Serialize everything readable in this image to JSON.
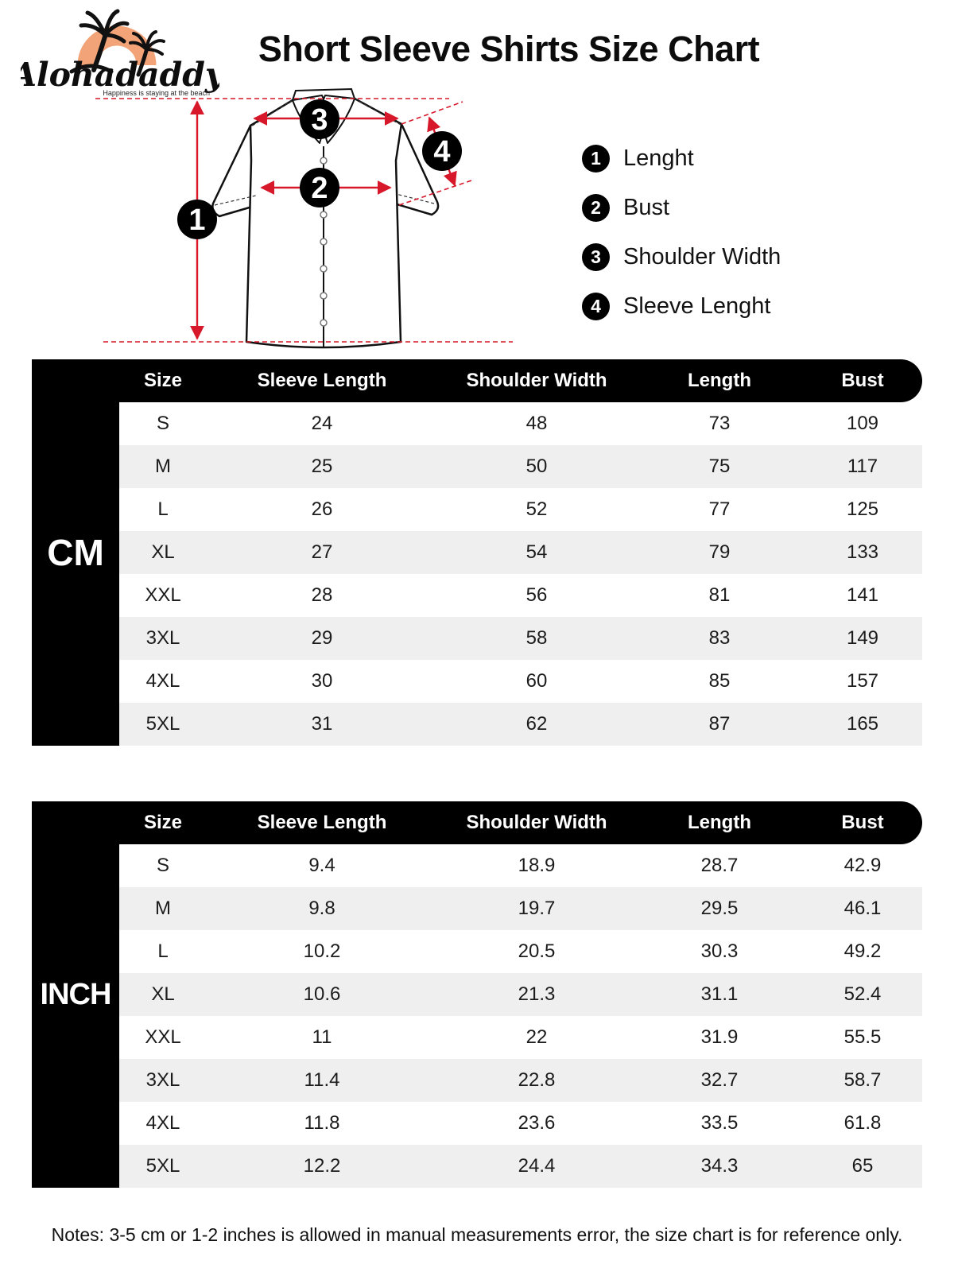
{
  "logo": {
    "brand": "Alohadaddy",
    "tagline": "Happiness is staying at the beach"
  },
  "title": "Short Sleeve Shirts Size Chart",
  "legend": {
    "items": [
      {
        "num": "1",
        "label": "Lenght"
      },
      {
        "num": "2",
        "label": "Bust"
      },
      {
        "num": "3",
        "label": "Shoulder Width"
      },
      {
        "num": "4",
        "label": "Sleeve Lenght"
      }
    ]
  },
  "tables": [
    {
      "unit_label": "CM",
      "headers": [
        "Size",
        "Sleeve Length",
        "Shoulder Width",
        "Length",
        "Bust"
      ],
      "rows": [
        [
          "S",
          "24",
          "48",
          "73",
          "109"
        ],
        [
          "M",
          "25",
          "50",
          "75",
          "117"
        ],
        [
          "L",
          "26",
          "52",
          "77",
          "125"
        ],
        [
          "XL",
          "27",
          "54",
          "79",
          "133"
        ],
        [
          "XXL",
          "28",
          "56",
          "81",
          "141"
        ],
        [
          "3XL",
          "29",
          "58",
          "83",
          "149"
        ],
        [
          "4XL",
          "30",
          "60",
          "85",
          "157"
        ],
        [
          "5XL",
          "31",
          "62",
          "87",
          "165"
        ]
      ]
    },
    {
      "unit_label": "INCH",
      "headers": [
        "Size",
        "Sleeve Length",
        "Shoulder Width",
        "Length",
        "Bust"
      ],
      "rows": [
        [
          "S",
          "9.4",
          "18.9",
          "28.7",
          "42.9"
        ],
        [
          "M",
          "9.8",
          "19.7",
          "29.5",
          "46.1"
        ],
        [
          "L",
          "10.2",
          "20.5",
          "30.3",
          "49.2"
        ],
        [
          "XL",
          "10.6",
          "21.3",
          "31.1",
          "52.4"
        ],
        [
          "XXL",
          "11",
          "22",
          "31.9",
          "55.5"
        ],
        [
          "3XL",
          "11.4",
          "22.8",
          "32.7",
          "58.7"
        ],
        [
          "4XL",
          "11.8",
          "23.6",
          "33.5",
          "61.8"
        ],
        [
          "5XL",
          "12.2",
          "24.4",
          "34.3",
          "65"
        ]
      ]
    }
  ],
  "notes": "Notes: 3-5 cm or 1-2 inches is allowed in manual measurements error, the size chart is for reference only.",
  "colors": {
    "accent_red": "#d7182a",
    "table_black": "#000000",
    "row_alt_gray": "#efefef",
    "logo_sun": "#f2a478"
  }
}
